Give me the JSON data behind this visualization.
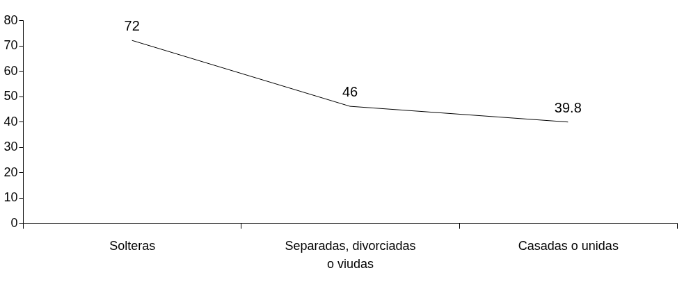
{
  "chart_data": {
    "type": "line",
    "categories": [
      "Solteras",
      "Separadas, divorciadas o viudas",
      "Casadas o unidas"
    ],
    "series": [
      {
        "color": "#000000",
        "values": [
          72,
          46,
          39.8
        ]
      }
    ],
    "ylim": [
      0,
      80
    ],
    "yticks": [
      0,
      10,
      20,
      30,
      40,
      50,
      60,
      70,
      80
    ],
    "data_labels": true,
    "grid": false,
    "legend": false,
    "marker": "none",
    "line_style": "solid"
  }
}
